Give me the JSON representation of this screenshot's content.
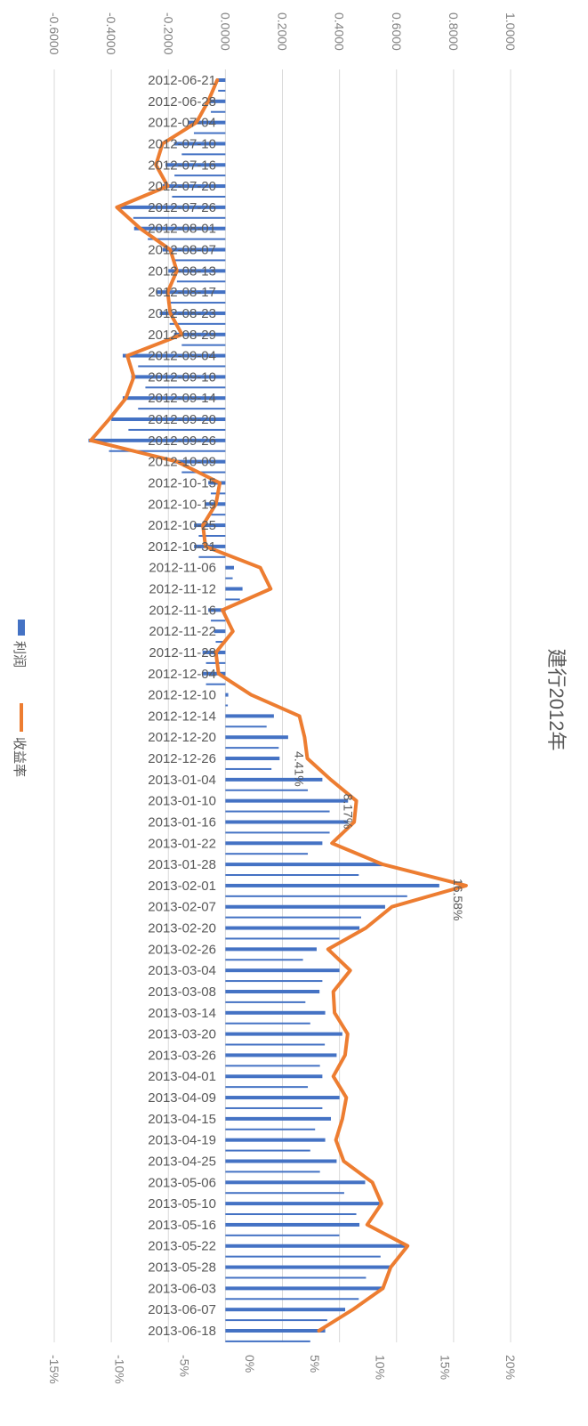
{
  "chart_data": {
    "type": "combo-bar-line",
    "orientation": "rotated-90deg",
    "title": "建行2012年",
    "legend": [
      {
        "name": "利润",
        "kind": "bar",
        "color": "#4472C4"
      },
      {
        "name": "收益率",
        "kind": "line",
        "color": "#ED7D31"
      }
    ],
    "profit_axis": {
      "range": [
        -0.6,
        1.0
      ],
      "ticks": [
        "-0.6000",
        "-0.4000",
        "-0.2000",
        "0.0000",
        "0.2000",
        "0.4000",
        "0.6000",
        "0.8000",
        "1.0000"
      ]
    },
    "return_axis": {
      "range": [
        -15,
        20
      ],
      "ticks": [
        "-15%",
        "-10%",
        "-5%",
        "0%",
        "5%",
        "10%",
        "15%",
        "20%"
      ]
    },
    "category_labels": [
      "2012-06-21",
      "2012-06-28",
      "2012-07-04",
      "2012-07-10",
      "2012-07-16",
      "2012-07-20",
      "2012-07-26",
      "2012-08-01",
      "2012-08-07",
      "2012-08-13",
      "2012-08-17",
      "2012-08-23",
      "2012-08-29",
      "2012-09-04",
      "2012-09-10",
      "2012-09-14",
      "2012-09-20",
      "2012-09-26",
      "2012-10-09",
      "2012-10-15",
      "2012-10-19",
      "2012-10-25",
      "2012-10-31",
      "2012-11-06",
      "2012-11-12",
      "2012-11-16",
      "2012-11-22",
      "2012-11-28",
      "2012-12-04",
      "2012-12-10",
      "2012-12-14",
      "2012-12-20",
      "2012-12-26",
      "2013-01-04",
      "2013-01-10",
      "2013-01-16",
      "2013-01-22",
      "2013-01-28",
      "2013-02-01",
      "2013-02-07",
      "2013-02-20",
      "2013-02-26",
      "2013-03-04",
      "2013-03-08",
      "2013-03-14",
      "2013-03-20",
      "2013-03-26",
      "2013-04-01",
      "2013-04-09",
      "2013-04-15",
      "2013-04-19",
      "2013-04-25",
      "2013-05-06",
      "2013-05-10",
      "2013-05-16",
      "2013-05-22",
      "2013-05-28",
      "2013-06-03",
      "2013-06-07",
      "2013-06-18"
    ],
    "profit": [
      -0.03,
      -0.06,
      -0.13,
      -0.18,
      -0.21,
      -0.22,
      -0.38,
      -0.32,
      -0.22,
      -0.2,
      -0.24,
      -0.23,
      -0.18,
      -0.36,
      -0.33,
      -0.36,
      -0.4,
      -0.48,
      -0.18,
      -0.06,
      -0.07,
      -0.11,
      -0.11,
      0.03,
      0.06,
      -0.06,
      -0.04,
      -0.08,
      -0.08,
      0.01,
      0.17,
      0.22,
      0.19,
      0.34,
      0.43,
      0.43,
      0.34,
      0.55,
      0.75,
      0.56,
      0.47,
      0.32,
      0.4,
      0.33,
      0.35,
      0.41,
      0.39,
      0.34,
      0.4,
      0.37,
      0.35,
      0.39,
      0.49,
      0.54,
      0.47,
      0.64,
      0.58,
      0.55,
      0.42,
      0.35
    ],
    "return_pct": [
      -2.5,
      -3.2,
      -4.1,
      -6.7,
      -7.2,
      -6.3,
      -10.2,
      -8.4,
      -6.1,
      -5.6,
      -6.3,
      -6.1,
      -5.2,
      -9.4,
      -8.9,
      -9.5,
      -10.8,
      -12.2,
      -5.6,
      -2.3,
      -2.6,
      -3.6,
      -3.4,
      0.8,
      1.6,
      -2.1,
      -1.3,
      -2.6,
      -2.4,
      0.1,
      3.8,
      4.2,
      4.41,
      6.2,
      8.17,
      8.0,
      6.3,
      10.2,
      16.58,
      10.9,
      8.9,
      6.0,
      7.7,
      6.4,
      6.5,
      7.5,
      7.3,
      6.4,
      7.4,
      7.1,
      6.6,
      7.2,
      9.4,
      10.1,
      9.0,
      12.1,
      10.8,
      10.2,
      7.9,
      5.3
    ],
    "data_labels": [
      {
        "category": "2012-12-26",
        "text": "4.41%"
      },
      {
        "category": "2013-01-10",
        "text": "8.17%"
      },
      {
        "category": "2013-02-01",
        "text": "16.58%"
      }
    ]
  }
}
